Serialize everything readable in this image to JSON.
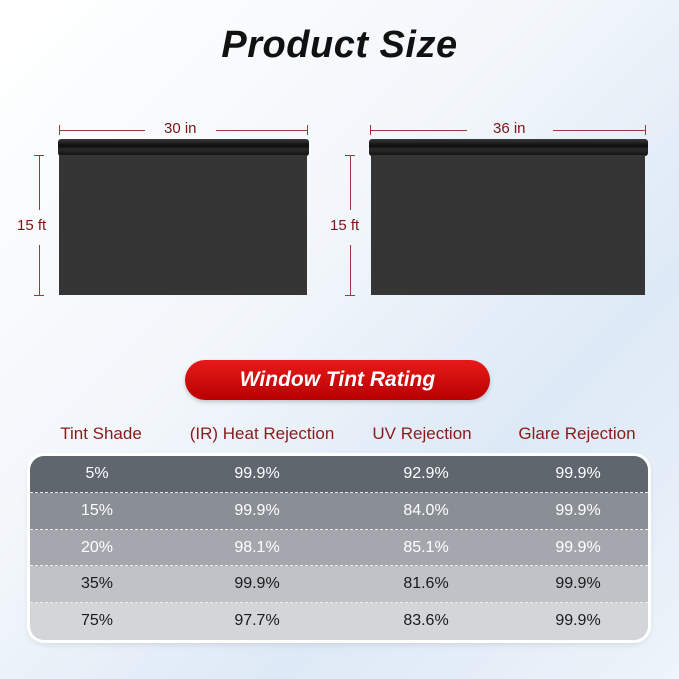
{
  "title": "Product Size",
  "rolls": [
    {
      "width": "30 in",
      "length": "15 ft"
    },
    {
      "width": "36 in",
      "length": "15 ft"
    }
  ],
  "rating_badge": "Window Tint Rating",
  "table": {
    "headers": [
      "Tint Shade",
      "(IR) Heat Rejection",
      "UV Rejection",
      "Glare Rejection"
    ],
    "rows": [
      [
        "5%",
        "99.9%",
        "92.9%",
        "99.9%"
      ],
      [
        "15%",
        "99.9%",
        "84.0%",
        "99.9%"
      ],
      [
        "20%",
        "98.1%",
        "85.1%",
        "99.9%"
      ],
      [
        "35%",
        "99.9%",
        "81.6%",
        "99.9%"
      ],
      [
        "75%",
        "97.7%",
        "83.6%",
        "99.9%"
      ]
    ]
  },
  "colors": {
    "accent_red": "#d40a0a",
    "label_red": "#8b1a1a",
    "row_shades": [
      "#5f666e",
      "#8a8f96",
      "#a4a8ae",
      "#bfc2c7",
      "#d3d5d8"
    ]
  }
}
